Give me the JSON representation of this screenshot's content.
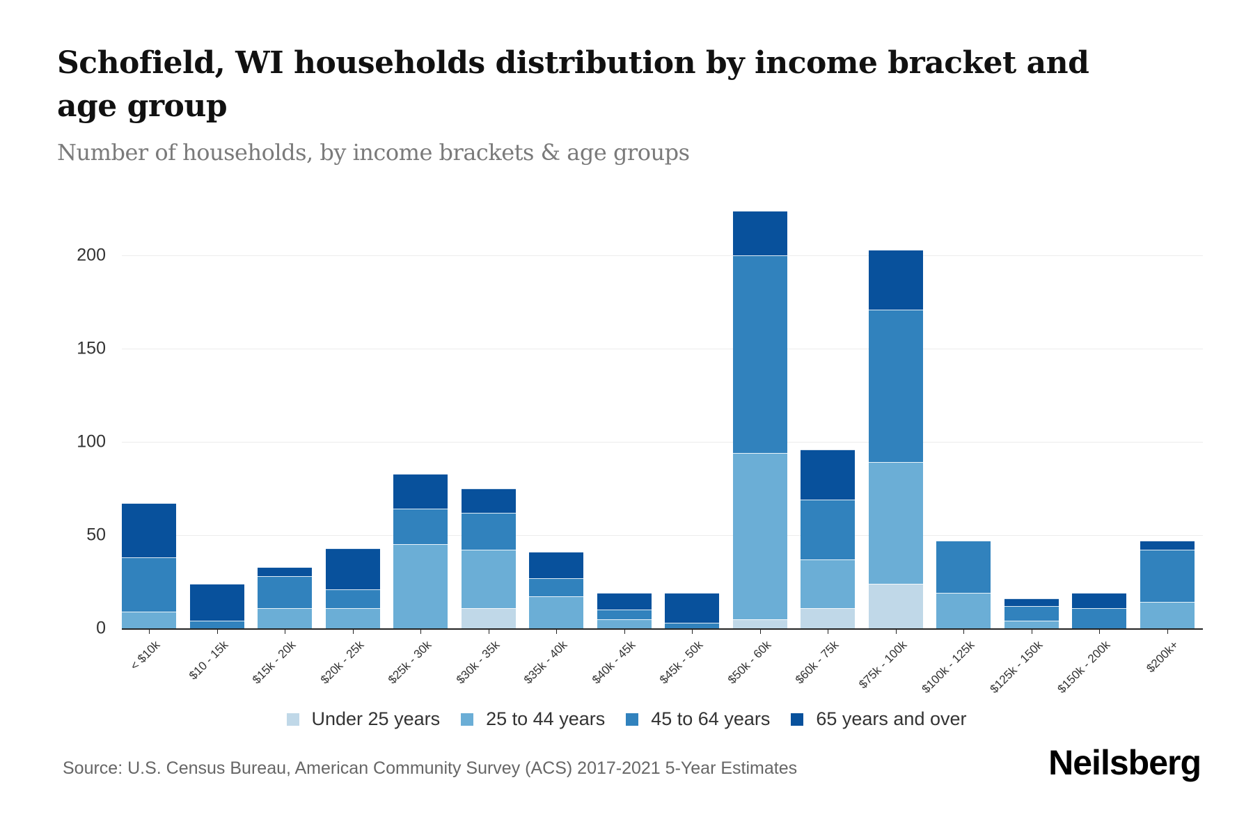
{
  "header": {
    "title": "Schofield, WI households distribution by income bracket and age group",
    "subtitle": "Number of households, by income brackets & age groups"
  },
  "footer": {
    "source": "Source: U.S. Census Bureau, American Community Survey (ACS) 2017-2021 5-Year Estimates",
    "logo": "Neilsberg"
  },
  "colors": {
    "under_25": "#c0d8e8",
    "25_to_44": "#6baed6",
    "45_to_64": "#3182bd",
    "65_plus": "#08519c"
  },
  "chart_data": {
    "type": "bar",
    "stacked": true,
    "title": "Schofield, WI households distribution by income bracket and age group",
    "subtitle": "Number of households, by income brackets & age groups",
    "xlabel": "",
    "ylabel": "",
    "ylim": [
      0,
      230
    ],
    "yticks": [
      0,
      50,
      100,
      150,
      200
    ],
    "grid": true,
    "legend_position": "bottom",
    "categories": [
      "< $10k",
      "$10 - 15k",
      "$15k - 20k",
      "$20k - 25k",
      "$25k - 30k",
      "$30k - 35k",
      "$35k - 40k",
      "$40k - 45k",
      "$45k - 50k",
      "$50k - 60k",
      "$60k - 75k",
      "$75k - 100k",
      "$100k - 125k",
      "$125k - 150k",
      "$150k - 200k",
      "$200k+"
    ],
    "series": [
      {
        "name": "Under 25 years",
        "color": "#c0d8e8",
        "values": [
          0,
          0,
          0,
          0,
          0,
          11,
          0,
          0,
          0,
          5,
          11,
          24,
          0,
          0,
          0,
          0
        ]
      },
      {
        "name": "25 to 44 years",
        "color": "#6baed6",
        "values": [
          9,
          0,
          11,
          11,
          45,
          31,
          17,
          5,
          0,
          89,
          26,
          65,
          19,
          4,
          0,
          14
        ]
      },
      {
        "name": "45 to 64 years",
        "color": "#3182bd",
        "values": [
          29,
          4,
          17,
          10,
          19,
          20,
          10,
          5,
          3,
          106,
          32,
          82,
          28,
          8,
          11,
          28
        ]
      },
      {
        "name": "65 years and over",
        "color": "#08519c",
        "values": [
          29,
          20,
          5,
          22,
          19,
          13,
          14,
          9,
          16,
          24,
          27,
          32,
          0,
          4,
          8,
          5
        ]
      }
    ],
    "totals": [
      67,
      24,
      33,
      43,
      83,
      75,
      41,
      19,
      19,
      224,
      96,
      203,
      47,
      16,
      19,
      47
    ]
  }
}
